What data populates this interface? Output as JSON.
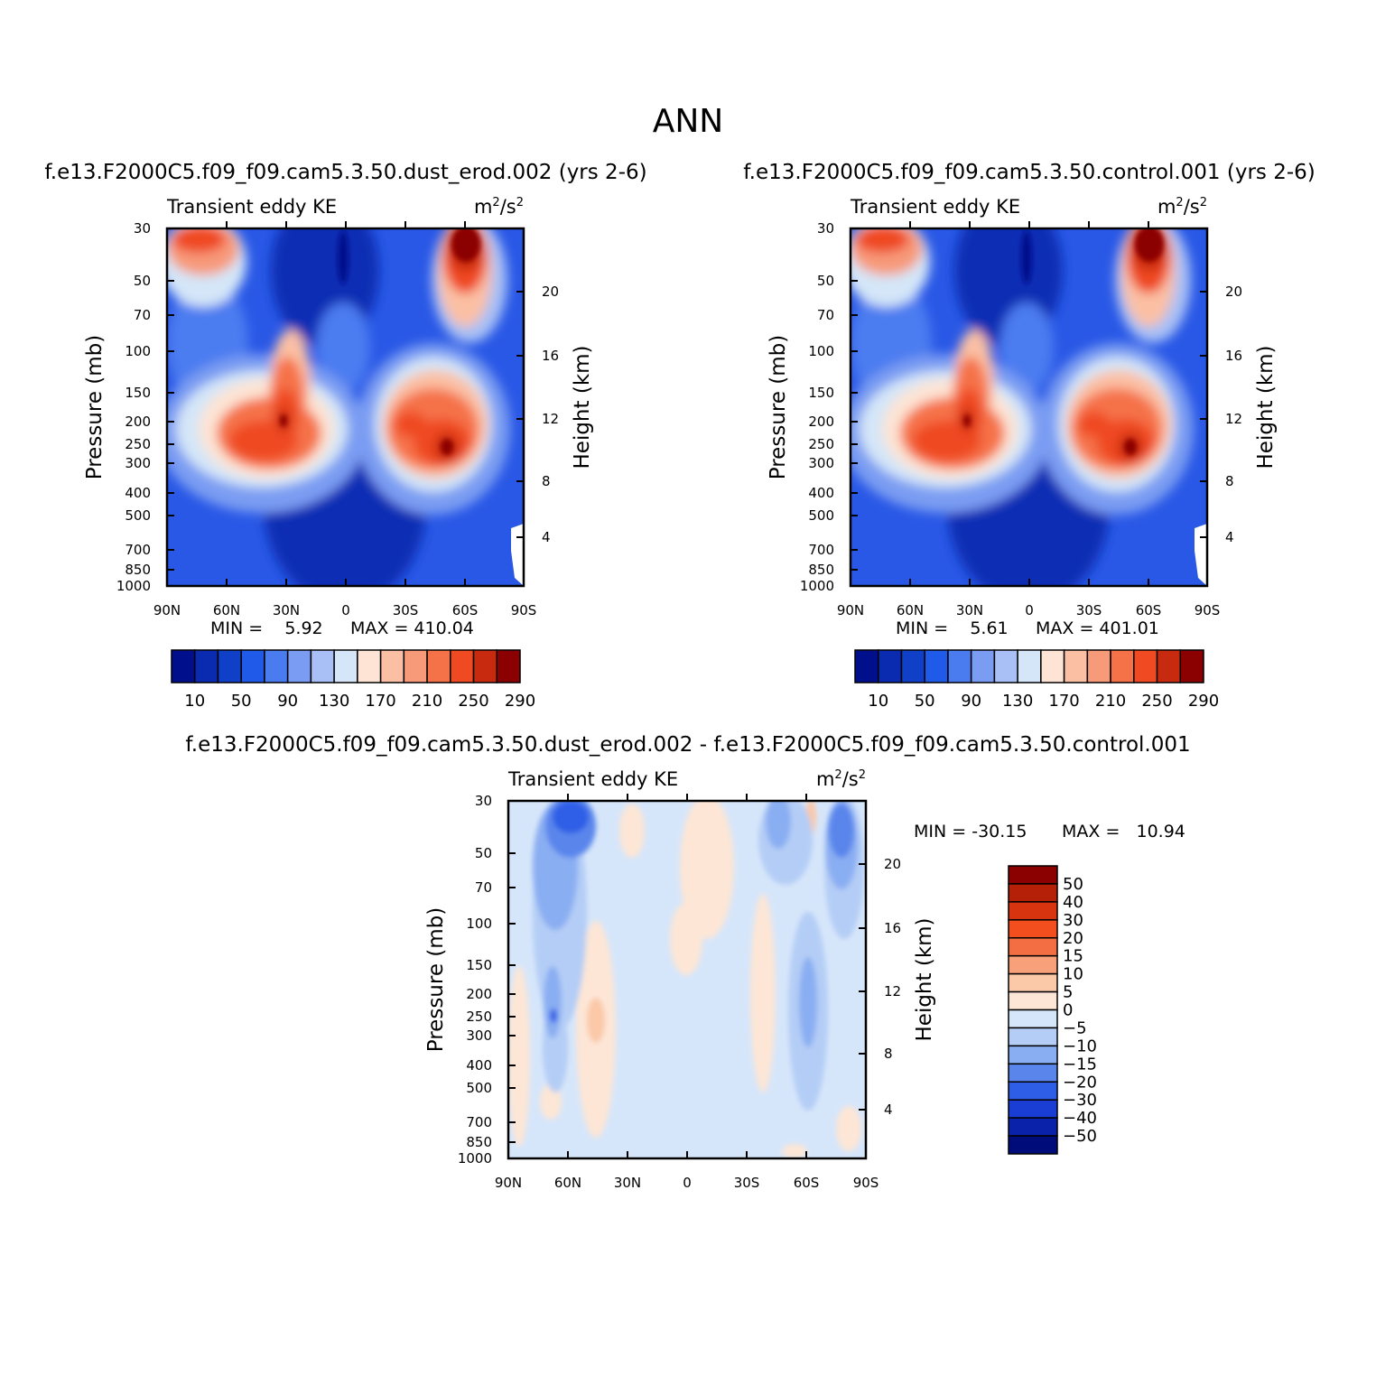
{
  "figure": {
    "title": "ANN"
  },
  "lat_tick_labels": [
    "90N",
    "60N",
    "30N",
    "0",
    "30S",
    "60S",
    "90S"
  ],
  "pressure_tick_labels": [
    "30",
    "50",
    "70",
    "100",
    "150",
    "200",
    "250",
    "300",
    "400",
    "500",
    "700",
    "850",
    "1000"
  ],
  "height_tick_labels": [
    "20",
    "16",
    "12",
    "8",
    "4"
  ],
  "chart_data": [
    {
      "type": "heatmap",
      "subtitle": "f.e13.F2000C5.f09_f09.cam5.3.50.dust_erod.002 (yrs 2-6)",
      "left_label": "Transient eddy KE",
      "right_label": "m²/s²",
      "xlabel": "",
      "ylabel": "Pressure (mb)",
      "y2label": "Height (km)",
      "x": [
        "90N",
        "60N",
        "30N",
        "0",
        "30S",
        "60S",
        "90S"
      ],
      "y_pressure": [
        30,
        50,
        70,
        100,
        150,
        200,
        250,
        300,
        400,
        500,
        700,
        850,
        1000
      ],
      "y_height_km": [
        20,
        16,
        12,
        8,
        4
      ],
      "min_text": "MIN =    5.92",
      "max_text": "MAX = 410.04",
      "min": 5.92,
      "max": 410.04,
      "colorbar": {
        "orientation": "horizontal",
        "levels": [
          10,
          30,
          50,
          70,
          90,
          110,
          130,
          150,
          170,
          190,
          210,
          230,
          250,
          270,
          290
        ],
        "tick_labels": [
          "10",
          "50",
          "90",
          "130",
          "170",
          "210",
          "250",
          "290"
        ],
        "colors": [
          "#000f8c",
          "#0a2ab0",
          "#1040c8",
          "#1f5ae8",
          "#4a7cf0",
          "#7a9cf2",
          "#a8c0f5",
          "#d4e6f8",
          "#fde4d4",
          "#fbc0a4",
          "#f79a7a",
          "#f57248",
          "#ef4a22",
          "#c82a10",
          "#8b0000"
        ]
      }
    },
    {
      "type": "heatmap",
      "subtitle": "f.e13.F2000C5.f09_f09.cam5.3.50.control.001 (yrs 2-6)",
      "left_label": "Transient eddy KE",
      "right_label": "m²/s²",
      "xlabel": "",
      "ylabel": "Pressure (mb)",
      "y2label": "Height (km)",
      "x": [
        "90N",
        "60N",
        "30N",
        "0",
        "30S",
        "60S",
        "90S"
      ],
      "y_pressure": [
        30,
        50,
        70,
        100,
        150,
        200,
        250,
        300,
        400,
        500,
        700,
        850,
        1000
      ],
      "y_height_km": [
        20,
        16,
        12,
        8,
        4
      ],
      "min_text": "MIN =    5.61",
      "max_text": "MAX = 401.01",
      "min": 5.61,
      "max": 401.01,
      "colorbar": {
        "orientation": "horizontal",
        "levels": [
          10,
          30,
          50,
          70,
          90,
          110,
          130,
          150,
          170,
          190,
          210,
          230,
          250,
          270,
          290
        ],
        "tick_labels": [
          "10",
          "50",
          "90",
          "130",
          "170",
          "210",
          "250",
          "290"
        ],
        "colors": [
          "#000f8c",
          "#0a2ab0",
          "#1040c8",
          "#1f5ae8",
          "#4a7cf0",
          "#7a9cf2",
          "#a8c0f5",
          "#d4e6f8",
          "#fde4d4",
          "#fbc0a4",
          "#f79a7a",
          "#f57248",
          "#ef4a22",
          "#c82a10",
          "#8b0000"
        ]
      }
    },
    {
      "type": "heatmap",
      "subtitle": "f.e13.F2000C5.f09_f09.cam5.3.50.dust_erod.002 - f.e13.F2000C5.f09_f09.cam5.3.50.control.001",
      "left_label": "Transient eddy KE",
      "right_label": "m²/s²",
      "xlabel": "",
      "ylabel": "Pressure (mb)",
      "y2label": "Height (km)",
      "x": [
        "90N",
        "60N",
        "30N",
        "0",
        "30S",
        "60S",
        "90S"
      ],
      "y_pressure": [
        30,
        50,
        70,
        100,
        150,
        200,
        250,
        300,
        400,
        500,
        700,
        850,
        1000
      ],
      "y_height_km": [
        20,
        16,
        12,
        8,
        4
      ],
      "min_text": "MIN = -30.15",
      "max_text": "MAX =   10.94",
      "min": -30.15,
      "max": 10.94,
      "colorbar": {
        "orientation": "vertical",
        "levels": [
          -50,
          -40,
          -30,
          -20,
          -15,
          -10,
          -5,
          0,
          5,
          10,
          15,
          20,
          30,
          40,
          50
        ],
        "tick_labels": [
          "50",
          "40",
          "30",
          "20",
          "15",
          "10",
          "5",
          "0",
          "−5",
          "−10",
          "−15",
          "−20",
          "−30",
          "−40",
          "−50"
        ],
        "colors_top_to_bottom": [
          "#8b0000",
          "#b42008",
          "#d83410",
          "#f24e1e",
          "#f46e44",
          "#f8a07a",
          "#fbc8a8",
          "#fde6d6",
          "#d6e6fa",
          "#b4cdf6",
          "#8aaef2",
          "#5a86ec",
          "#2e5ee6",
          "#1a3ed4",
          "#0a22aa",
          "#000c7a"
        ]
      }
    }
  ]
}
